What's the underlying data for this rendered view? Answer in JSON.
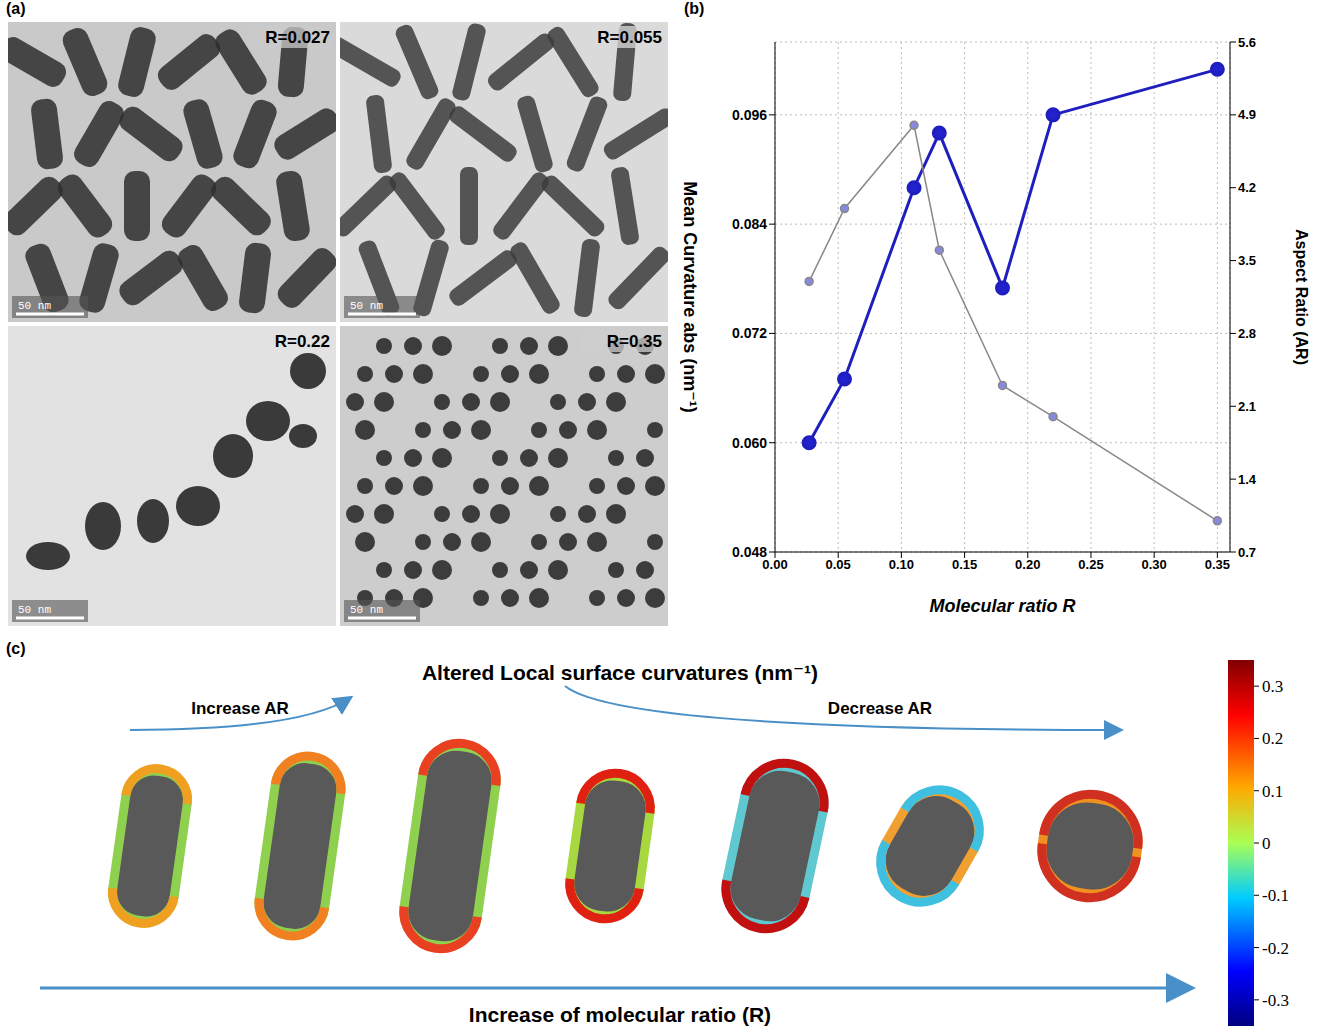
{
  "panel_labels": [
    "(a)",
    "(b)",
    "(c)"
  ],
  "micrographs": [
    {
      "label": "R=0.027",
      "scale_bar": "50 nm"
    },
    {
      "label": "R=0.055",
      "scale_bar": "50 nm"
    },
    {
      "label": "R=0.22",
      "scale_bar": "50 nm"
    },
    {
      "label": "R=0.35",
      "scale_bar": "50 nm"
    }
  ],
  "chart_data": {
    "type": "line",
    "x_label": "Molecular ratio R",
    "y_label": "Mean Curvature abs (nm⁻¹)",
    "y2_label": "Aspect Ratio (AR)",
    "x": [
      0.027,
      0.055,
      0.11,
      0.13,
      0.18,
      0.22,
      0.35
    ],
    "series": [
      {
        "color": "#1f1fbf",
        "marker": "circle",
        "line_style": "solid",
        "values": [
          0.06,
          0.067,
          0.088,
          0.094,
          0.077,
          0.096,
          0.101
        ]
      },
      {
        "color": "#888888",
        "marker": "circle",
        "line_style": "solid",
        "axis": "y2",
        "values": [
          3.3,
          4.0,
          4.8,
          3.6,
          2.3,
          2.0,
          1.0
        ]
      }
    ],
    "xlim": [
      0,
      0.36
    ],
    "xticks": [
      {
        "value": 0,
        "label": "0.00"
      },
      0.05,
      {
        "value": 0.1,
        "label": "0.10"
      },
      0.15,
      {
        "value": 0.2,
        "label": "0.20"
      },
      0.25,
      {
        "value": 0.3,
        "label": "0.30"
      },
      0.35
    ],
    "ylim": [
      0.048,
      0.104
    ],
    "yticks": [
      0.048,
      {
        "value": 0.06,
        "label": "0.060"
      },
      0.072,
      0.084,
      0.096
    ],
    "y2lim": [
      0.7,
      5.6
    ],
    "y2ticks": [
      0.7,
      1.4,
      2.1,
      2.8,
      3.5,
      4.2,
      4.9,
      5.6
    ],
    "grid": true
  },
  "curvature_map": {
    "title": "Altered Local surface curvatures (nm⁻¹)",
    "arrows": [
      "Increase AR",
      "Decrease AR"
    ],
    "x_label": "Increase of molecular ratio (R)",
    "colorbar": {
      "range": [
        -0.35,
        0.35
      ],
      "ticks": [
        0.3,
        0.2,
        0.1,
        0,
        -0.1,
        -0.2,
        -0.3
      ]
    }
  }
}
